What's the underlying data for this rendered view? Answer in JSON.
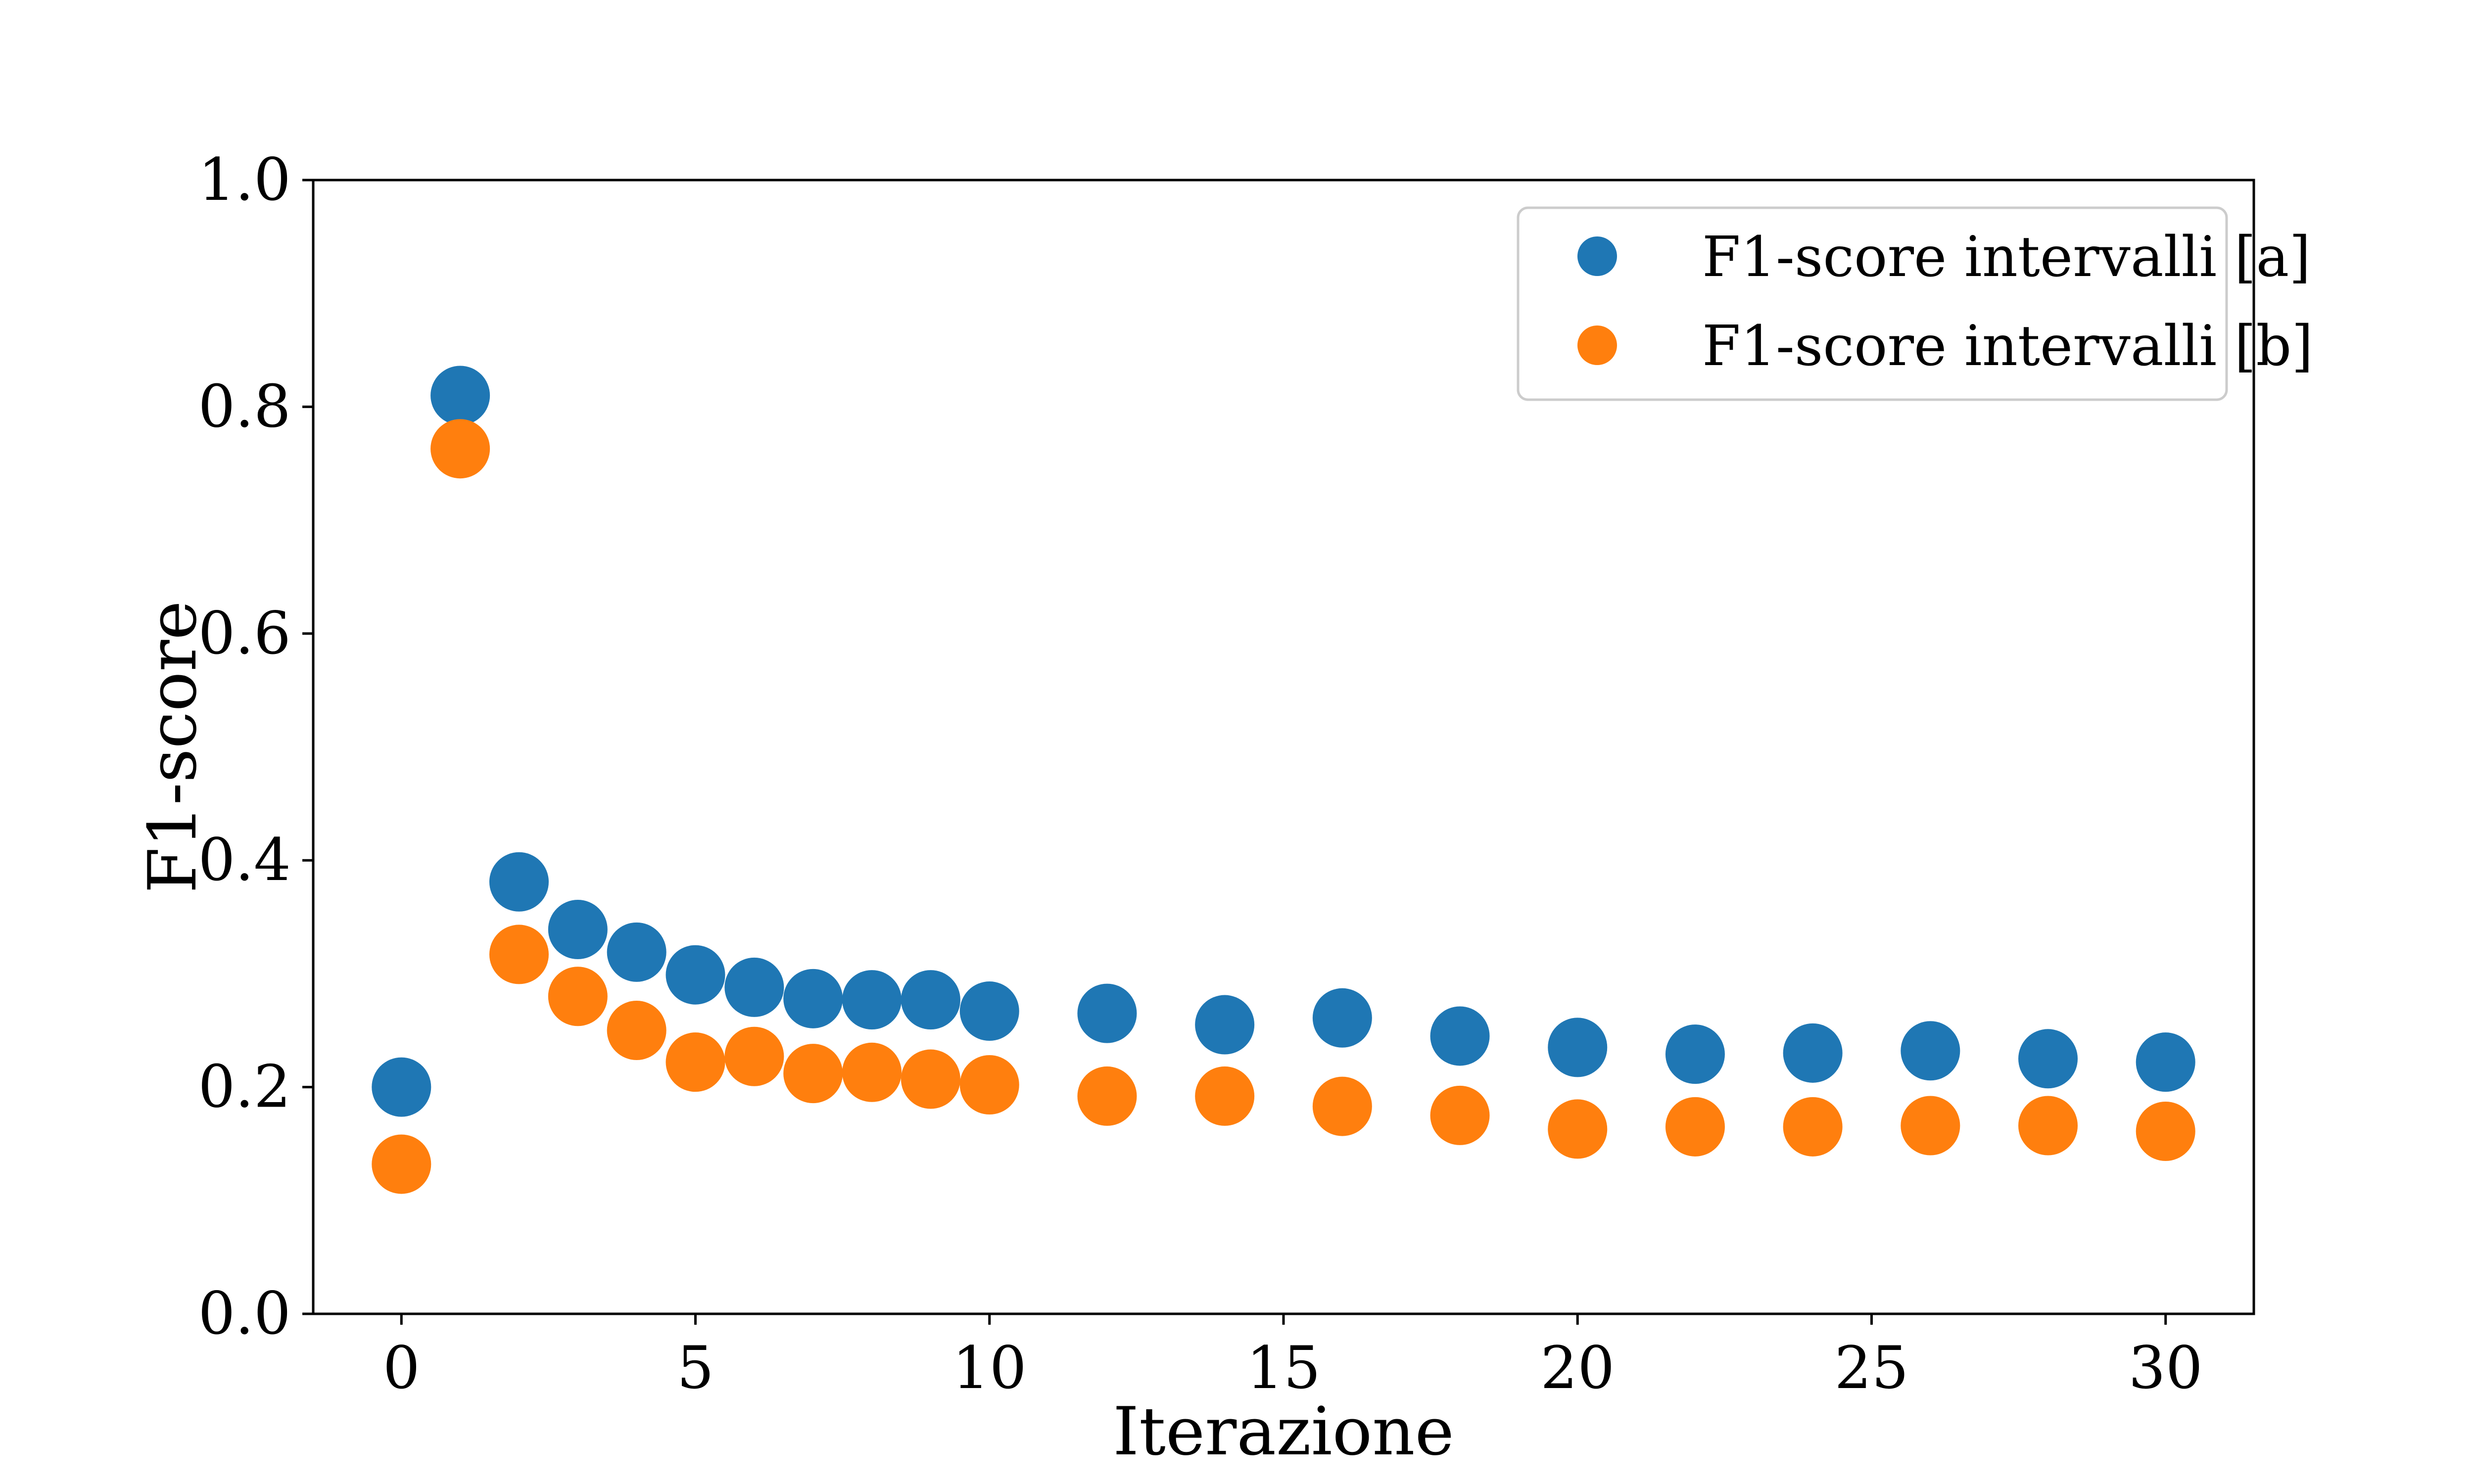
{
  "chart_data": {
    "type": "scatter",
    "title": "",
    "xlabel": "Iterazione",
    "ylabel": "F1-score",
    "xlim": [
      -1.5,
      31.5
    ],
    "ylim": [
      0.0,
      1.0
    ],
    "x_ticks": [
      0,
      5,
      10,
      15,
      20,
      25,
      30
    ],
    "x_tick_labels": [
      "0",
      "5",
      "10",
      "15",
      "20",
      "25",
      "30"
    ],
    "y_ticks": [
      0.0,
      0.2,
      0.4,
      0.6,
      0.8,
      1.0
    ],
    "y_tick_labels": [
      "0.0",
      "0.2",
      "0.4",
      "0.6",
      "0.8",
      "1.0"
    ],
    "grid": false,
    "legend_position": "top-right",
    "x": [
      0,
      1,
      2,
      3,
      4,
      5,
      6,
      7,
      8,
      9,
      10,
      12,
      14,
      16,
      18,
      20,
      22,
      24,
      26,
      28,
      30
    ],
    "series": [
      {
        "name": "F1-score intervalli [a]",
        "color": "#1f77b4",
        "values": [
          0.2,
          0.81,
          0.381,
          0.339,
          0.319,
          0.299,
          0.288,
          0.278,
          0.277,
          0.277,
          0.267,
          0.265,
          0.255,
          0.261,
          0.245,
          0.235,
          0.229,
          0.23,
          0.232,
          0.225,
          0.222
        ]
      },
      {
        "name": "F1-score intervalli [b]",
        "color": "#ff7f0e",
        "values": [
          0.132,
          0.763,
          0.317,
          0.28,
          0.25,
          0.222,
          0.227,
          0.212,
          0.213,
          0.207,
          0.202,
          0.192,
          0.192,
          0.183,
          0.175,
          0.163,
          0.165,
          0.165,
          0.166,
          0.166,
          0.161
        ]
      }
    ]
  }
}
